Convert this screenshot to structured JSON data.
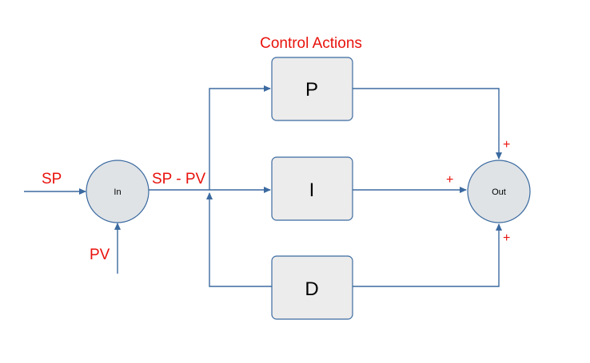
{
  "title": "Control Actions",
  "inputs": {
    "sp": "SP",
    "pv": "PV",
    "error": "SP - PV"
  },
  "nodes": {
    "in": "In",
    "out": "Out"
  },
  "blocks": {
    "p": "P",
    "i": "I",
    "d": "D"
  },
  "signs": {
    "top": "+",
    "middle": "+",
    "bottom": "+"
  },
  "colors": {
    "label_red": "#e8120c",
    "wire_blue": "#3b6aa0",
    "block_fill": "#ececec",
    "node_fill": "#dfe3e6"
  }
}
